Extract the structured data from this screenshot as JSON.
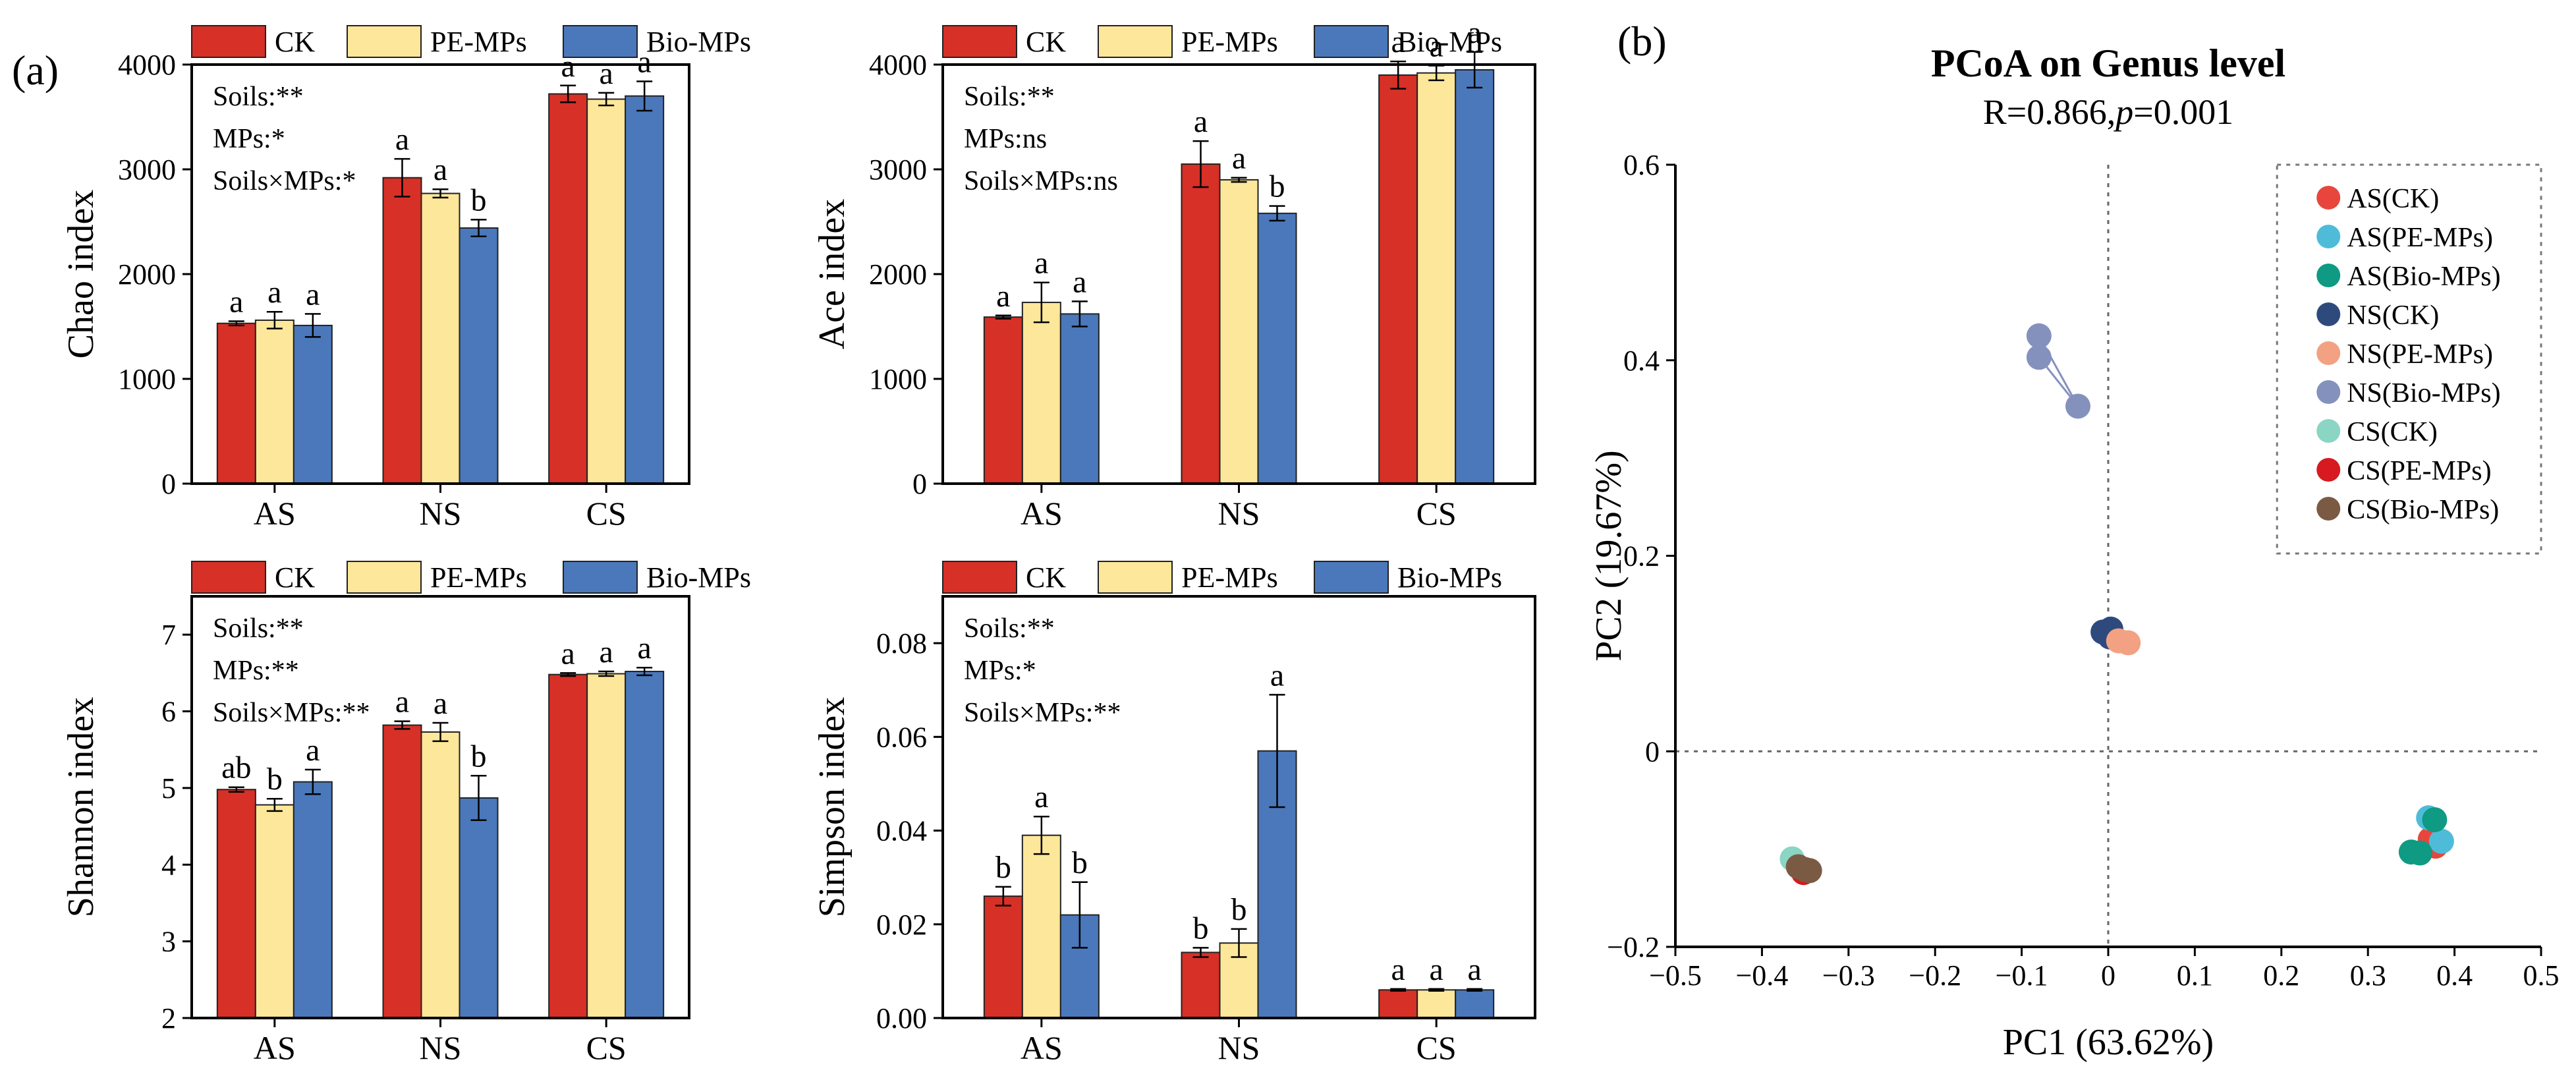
{
  "panel_labels": {
    "a": "(a)",
    "b": "(b)"
  },
  "legend_bars": [
    "CK",
    "PE-MPs",
    "Bio-MPs"
  ],
  "colors": {
    "CK": "#d63027",
    "PE-MPs": "#fde79a",
    "Bio-MPs": "#4a78bb"
  },
  "chart_data": [
    {
      "type": "bar",
      "panel": "a1",
      "ylabel": "Chao index",
      "categories": [
        "AS",
        "NS",
        "CS"
      ],
      "ylim": [
        0,
        4000
      ],
      "yticks": [
        0,
        1000,
        2000,
        3000,
        4000
      ],
      "series": [
        {
          "name": "CK",
          "values": [
            1530,
            2920,
            3720
          ],
          "errors": [
            20,
            180,
            80
          ],
          "letters": [
            "a",
            "a",
            "a"
          ]
        },
        {
          "name": "PE-MPs",
          "values": [
            1560,
            2770,
            3670
          ],
          "errors": [
            80,
            40,
            60
          ],
          "letters": [
            "a",
            "a",
            "a"
          ]
        },
        {
          "name": "Bio-MPs",
          "values": [
            1510,
            2440,
            3700
          ],
          "errors": [
            110,
            80,
            140
          ],
          "letters": [
            "a",
            "b",
            "a"
          ]
        }
      ],
      "annotations": [
        "Soils:**",
        "MPs:*",
        "Soils×MPs:*"
      ]
    },
    {
      "type": "bar",
      "panel": "a2",
      "ylabel": "Ace index",
      "categories": [
        "AS",
        "NS",
        "CS"
      ],
      "ylim": [
        0,
        4000
      ],
      "yticks": [
        0,
        1000,
        2000,
        3000,
        4000
      ],
      "series": [
        {
          "name": "CK",
          "values": [
            1590,
            3050,
            3900
          ],
          "errors": [
            15,
            220,
            130
          ],
          "letters": [
            "a",
            "a",
            "a"
          ]
        },
        {
          "name": "PE-MPs",
          "values": [
            1730,
            2900,
            3920
          ],
          "errors": [
            190,
            20,
            70
          ],
          "letters": [
            "a",
            "a",
            "a"
          ]
        },
        {
          "name": "Bio-MPs",
          "values": [
            1620,
            2580,
            3950
          ],
          "errors": [
            120,
            70,
            170
          ],
          "letters": [
            "a",
            "b",
            "a"
          ]
        }
      ],
      "annotations": [
        "Soils:**",
        "MPs:ns",
        "Soils×MPs:ns"
      ]
    },
    {
      "type": "bar",
      "panel": "a3",
      "ylabel": "Shannon index",
      "categories": [
        "AS",
        "NS",
        "CS"
      ],
      "ylim": [
        2,
        7.5
      ],
      "yticks": [
        2,
        3,
        4,
        5,
        6,
        7
      ],
      "series": [
        {
          "name": "CK",
          "values": [
            4.98,
            5.82,
            6.48
          ],
          "errors": [
            0.03,
            0.05,
            0.02
          ],
          "letters": [
            "ab",
            "a",
            "a"
          ]
        },
        {
          "name": "PE-MPs",
          "values": [
            4.78,
            5.73,
            6.49
          ],
          "errors": [
            0.08,
            0.12,
            0.03
          ],
          "letters": [
            "b",
            "a",
            "a"
          ]
        },
        {
          "name": "Bio-MPs",
          "values": [
            5.08,
            4.87,
            6.52
          ],
          "errors": [
            0.16,
            0.29,
            0.05
          ],
          "letters": [
            "a",
            "b",
            "a"
          ]
        }
      ],
      "annotations": [
        "Soils:**",
        "MPs:**",
        "Soils×MPs:**"
      ]
    },
    {
      "type": "bar",
      "panel": "a4",
      "ylabel": "Simpson index",
      "categories": [
        "AS",
        "NS",
        "CS"
      ],
      "ylim": [
        0,
        0.09
      ],
      "yticks": [
        0.0,
        0.02,
        0.04,
        0.06,
        0.08
      ],
      "ytick_labels": [
        "0.00",
        "0.02",
        "0.04",
        "0.06",
        "0.08"
      ],
      "series": [
        {
          "name": "CK",
          "values": [
            0.026,
            0.014,
            0.006
          ],
          "errors": [
            0.002,
            0.001,
            0.0002
          ],
          "letters": [
            "b",
            "b",
            "a"
          ]
        },
        {
          "name": "PE-MPs",
          "values": [
            0.039,
            0.016,
            0.006
          ],
          "errors": [
            0.004,
            0.003,
            0.0002
          ],
          "letters": [
            "a",
            "b",
            "a"
          ]
        },
        {
          "name": "Bio-MPs",
          "values": [
            0.022,
            0.057,
            0.006
          ],
          "errors": [
            0.007,
            0.012,
            0.0002
          ],
          "letters": [
            "b",
            "a",
            "a"
          ]
        }
      ],
      "annotations": [
        "Soils:**",
        "MPs:*",
        "Soils×MPs:**"
      ]
    },
    {
      "type": "scatter",
      "panel": "b",
      "title": "PCoA on Genus level",
      "subtitle_prefix": "R=0.866,",
      "subtitle_p": "p",
      "subtitle_suffix": "=0.001",
      "xlabel": "PC1 (63.62%)",
      "ylabel": "PC2 (19.67%)",
      "xlim": [
        -0.5,
        0.5
      ],
      "ylim": [
        -0.2,
        0.6
      ],
      "xticks": [
        -0.5,
        -0.4,
        -0.3,
        -0.2,
        -0.1,
        0.0,
        0.1,
        0.2,
        0.3,
        0.4,
        0.5
      ],
      "xtick_labels": [
        "−0.5",
        "−0.4",
        "−0.3",
        "−0.2",
        "−0.1",
        "0",
        "0.1",
        "0.2",
        "0.3",
        "0.4",
        "0.5"
      ],
      "yticks": [
        -0.2,
        0.0,
        0.2,
        0.4,
        0.6
      ],
      "ytick_labels": [
        "−0.2",
        "0",
        "0.2",
        "0.4",
        "0.6"
      ],
      "legend_position": "top-right",
      "series": [
        {
          "name": "AS(CK)",
          "color": "#e8463c",
          "points": [
            [
              0.378,
              -0.097
            ],
            [
              0.372,
              -0.09
            ]
          ]
        },
        {
          "name": "AS(PE-MPs)",
          "color": "#4ebcd9",
          "points": [
            [
              0.385,
              -0.092
            ],
            [
              0.37,
              -0.068
            ]
          ]
        },
        {
          "name": "AS(Bio-MPs)",
          "color": "#0e9a83",
          "points": [
            [
              0.377,
              -0.07
            ],
            [
              0.35,
              -0.103
            ],
            [
              0.36,
              -0.104
            ]
          ]
        },
        {
          "name": "NS(CK)",
          "color": "#2e4a7d",
          "points": [
            [
              -0.006,
              0.122
            ],
            [
              0.003,
              0.125
            ],
            [
              0.002,
              0.117
            ]
          ]
        },
        {
          "name": "NS(PE-MPs)",
          "color": "#f3a183",
          "points": [
            [
              0.012,
              0.113
            ],
            [
              0.023,
              0.111
            ]
          ]
        },
        {
          "name": "NS(Bio-MPs)",
          "color": "#8591bd",
          "points": [
            [
              -0.08,
              0.425
            ],
            [
              -0.08,
              0.403
            ],
            [
              -0.035,
              0.353
            ]
          ]
        },
        {
          "name": "CS(CK)",
          "color": "#8ad5c4",
          "points": [
            [
              -0.365,
              -0.11
            ]
          ]
        },
        {
          "name": "CS(PE-MPs)",
          "color": "#d71920",
          "points": [
            [
              -0.352,
              -0.124
            ]
          ]
        },
        {
          "name": "CS(Bio-MPs)",
          "color": "#7b5a44",
          "points": [
            [
              -0.358,
              -0.118
            ],
            [
              -0.345,
              -0.122
            ],
            [
              -0.35,
              -0.121
            ]
          ]
        }
      ]
    }
  ]
}
